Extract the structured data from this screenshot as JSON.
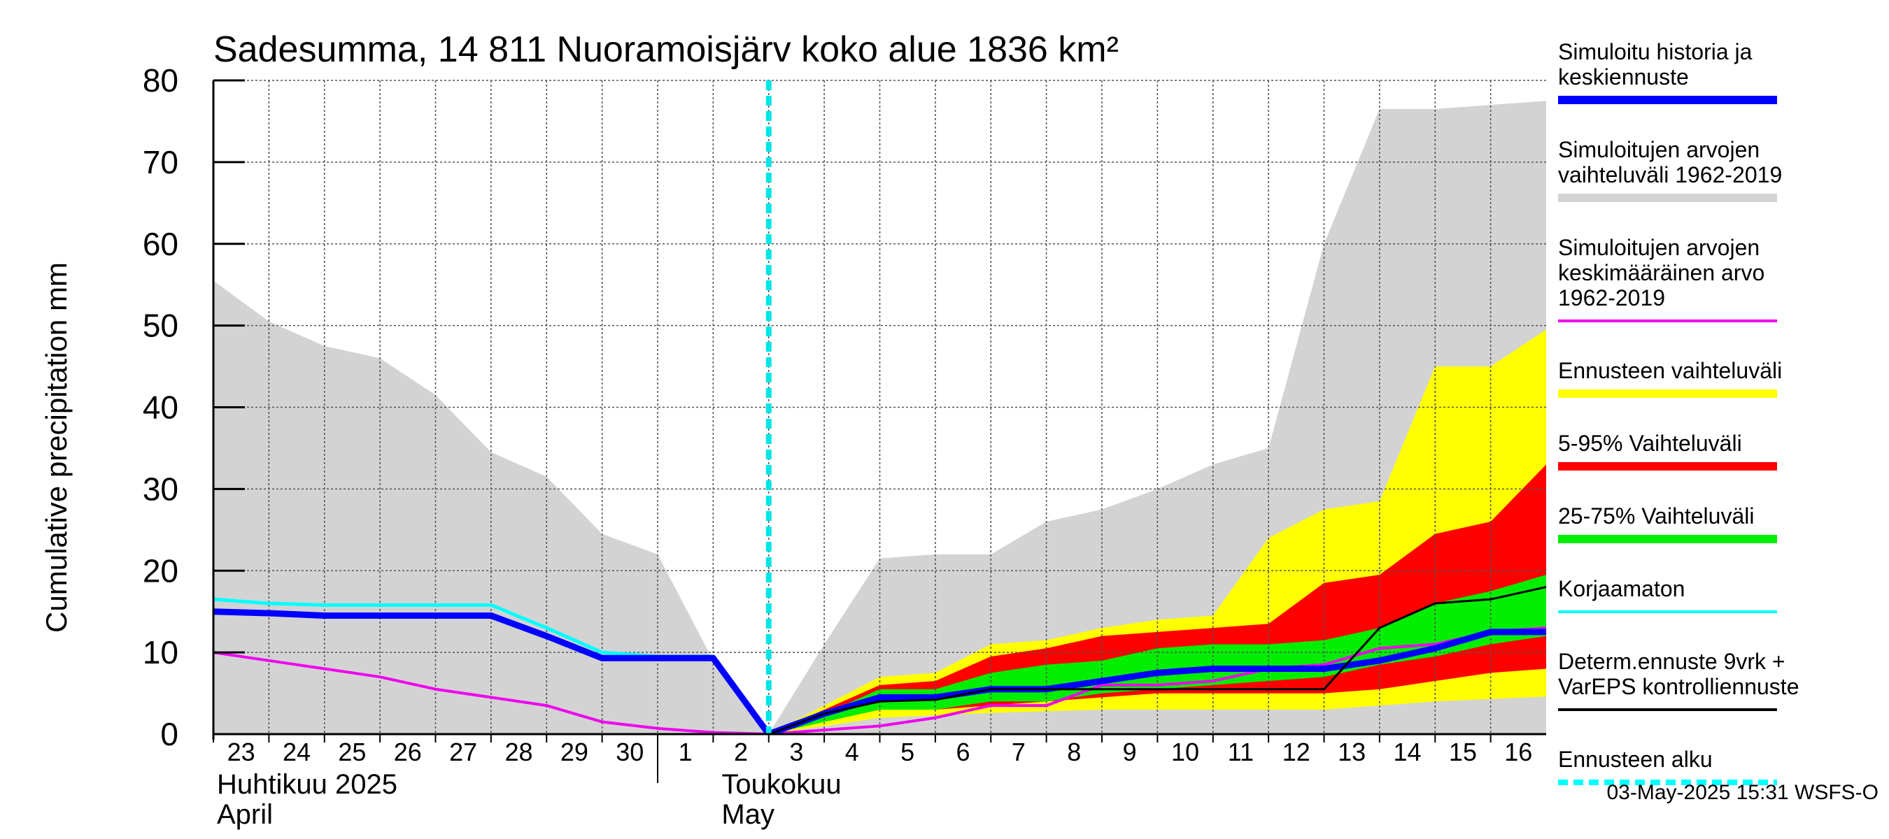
{
  "chart_data": {
    "type": "area",
    "title": "Sadesumma, 14 811 Nuoramoisjärv koko alue 1836 km²",
    "ylabel": "Cumulative precipitation   mm",
    "ylim": [
      0,
      80
    ],
    "yticks": [
      "0",
      "10",
      "20",
      "30",
      "40",
      "50",
      "60",
      "70",
      "80"
    ],
    "xlim": [
      0,
      24
    ],
    "x_tick_labels": [
      "23",
      "24",
      "25",
      "26",
      "27",
      "28",
      "29",
      "30",
      "1",
      "2",
      "3",
      "4",
      "5",
      "6",
      "7",
      "8",
      "9",
      "10",
      "11",
      "12",
      "13",
      "14",
      "15",
      "16"
    ],
    "x_dates": [
      "2025-04-23",
      "2025-04-24",
      "2025-04-25",
      "2025-04-26",
      "2025-04-27",
      "2025-04-28",
      "2025-04-29",
      "2025-04-30",
      "2025-05-01",
      "2025-05-02",
      "2025-05-03",
      "2025-05-04",
      "2025-05-05",
      "2025-05-06",
      "2025-05-07",
      "2025-05-08",
      "2025-05-09",
      "2025-05-10",
      "2025-05-11",
      "2025-05-12",
      "2025-05-13",
      "2025-05-14",
      "2025-05-15",
      "2025-05-16",
      "2025-05-17"
    ],
    "month_labels": [
      {
        "line1": "Huhtikuu  2025",
        "line2": "April"
      },
      {
        "line1": "Toukokuu",
        "line2": "May"
      }
    ],
    "forecast_start_x": 10,
    "bands": [
      {
        "name": "Simuloitujen arvojen vaihteluväli 1962-2019",
        "color": "#d3d3d3",
        "x": [
          0,
          1,
          2,
          3,
          4,
          5,
          6,
          7,
          8,
          9,
          10,
          11,
          12,
          13,
          14,
          15,
          16,
          17,
          18,
          19,
          20,
          21,
          22,
          23,
          24
        ],
        "upper": [
          55.5,
          50.5,
          47.5,
          46,
          41.5,
          34.5,
          31.5,
          24.5,
          22,
          9,
          0,
          11,
          21.5,
          22,
          22,
          26,
          27.5,
          30,
          33,
          35,
          60,
          76.5,
          76.5,
          77,
          77.5
        ],
        "lower": [
          0,
          0,
          0,
          0,
          0,
          0,
          0,
          0,
          0,
          0,
          0,
          0,
          0,
          0,
          0,
          0,
          0,
          0,
          0,
          0,
          0,
          0,
          0,
          0,
          0
        ]
      },
      {
        "name": "Ennusteen vaihteluväli",
        "color": "#ffff00",
        "x": [
          10,
          11,
          12,
          13,
          14,
          15,
          16,
          17,
          18,
          19,
          20,
          21,
          22,
          23,
          24
        ],
        "upper": [
          0,
          3.5,
          7,
          7.5,
          11,
          11.5,
          13,
          14,
          14.5,
          24,
          27.5,
          28.5,
          45,
          45,
          49.5
        ],
        "lower": [
          0,
          1,
          2,
          2.3,
          2.6,
          2.8,
          3,
          3,
          3,
          3,
          3,
          3.5,
          4,
          4.3,
          4.6
        ]
      },
      {
        "name": "5-95% Vaihteluväli",
        "color": "#ff0000",
        "x": [
          10,
          11,
          12,
          13,
          14,
          15,
          16,
          17,
          18,
          19,
          20,
          21,
          22,
          23,
          24
        ],
        "upper": [
          0,
          3,
          6,
          6.5,
          9.5,
          10.5,
          12,
          12.5,
          13,
          13.5,
          18.5,
          19.5,
          24.5,
          26,
          33
        ],
        "lower": [
          0,
          1.5,
          3,
          3,
          3.5,
          4,
          4.5,
          5,
          5,
          5,
          5,
          5.5,
          6.5,
          7.5,
          8
        ]
      },
      {
        "name": "25-75% Vaihteluväli",
        "color": "#00ee00",
        "x": [
          10,
          11,
          12,
          13,
          14,
          15,
          16,
          17,
          18,
          19,
          20,
          21,
          22,
          23,
          24
        ],
        "upper": [
          0,
          2.5,
          5.5,
          5.5,
          7.5,
          8.5,
          9,
          10.5,
          11,
          11,
          11.5,
          13,
          16,
          17.5,
          19.5
        ],
        "lower": [
          0,
          1.5,
          3,
          3,
          4,
          4,
          5,
          5.5,
          6,
          6.5,
          7,
          8.5,
          9.5,
          11,
          12
        ]
      }
    ],
    "series": [
      {
        "name": "Simuloitujen arvojen keskimääräinen arvo 1962-2019",
        "color": "#ee00ee",
        "width": 4,
        "x": [
          0,
          1,
          2,
          3,
          4,
          5,
          6,
          7,
          8,
          9,
          10,
          11,
          12,
          13,
          14,
          15,
          16,
          17,
          18,
          19,
          20,
          21,
          22,
          23,
          24
        ],
        "y": [
          10,
          9,
          8,
          7,
          5.5,
          4.5,
          3.5,
          1.5,
          0.7,
          0.2,
          0,
          0.5,
          1,
          2,
          3.5,
          3.5,
          6,
          6,
          6.5,
          8,
          8.5,
          10.5,
          11,
          12.5,
          13
        ]
      },
      {
        "name": "Korjaamaton",
        "color": "#00ffff",
        "width": 5,
        "x": [
          0,
          1,
          2,
          3,
          4,
          5,
          6,
          7,
          8,
          9,
          10
        ],
        "y": [
          16.5,
          16,
          15.8,
          15.8,
          15.8,
          15.8,
          13,
          10,
          9.5,
          9.5,
          0
        ]
      },
      {
        "name": "Simuloitu historia ja keskiennuste",
        "color": "#0000ff",
        "width": 9,
        "x": [
          0,
          1,
          2,
          3,
          4,
          5,
          6,
          7,
          8,
          9,
          10,
          11,
          12,
          13,
          14,
          15,
          16,
          17,
          18,
          19,
          20,
          21,
          22,
          23,
          24
        ],
        "y": [
          15,
          14.8,
          14.5,
          14.5,
          14.5,
          14.5,
          12,
          9.3,
          9.3,
          9.3,
          0,
          2.5,
          4.5,
          4.5,
          5.5,
          5.5,
          6.5,
          7.5,
          8,
          8,
          8,
          9,
          10.5,
          12.5,
          12.5
        ]
      },
      {
        "name": "Determ.ennuste 9vrk + VarEPS kontrolliennuste",
        "color": "#000000",
        "width": 3,
        "x": [
          10,
          11,
          12,
          13,
          14,
          15,
          16,
          17,
          18,
          19,
          20,
          21,
          22,
          23,
          24
        ],
        "y": [
          0,
          2.5,
          4,
          4.2,
          5.5,
          5.5,
          5.5,
          5.5,
          5.5,
          5.5,
          5.5,
          13,
          16,
          16.5,
          18
        ]
      }
    ],
    "legend": [
      {
        "label": "Simuloitu historia ja\nkeskiennuste",
        "color": "#0000ff",
        "style": "thick"
      },
      {
        "label": "Simuloitujen arvojen\nvaihteluväli 1962-2019",
        "color": "#d3d3d3",
        "style": "thick"
      },
      {
        "label": "Simuloitujen arvojen\nkeskimääräinen arvo\n   1962-2019",
        "color": "#ee00ee",
        "style": "thin"
      },
      {
        "label": "Ennusteen vaihteluväli",
        "color": "#ffff00",
        "style": "thick"
      },
      {
        "label": "5-95% Vaihteluväli",
        "color": "#ff0000",
        "style": "thick"
      },
      {
        "label": "25-75% Vaihteluväli",
        "color": "#00ee00",
        "style": "thick"
      },
      {
        "label": "Korjaamaton",
        "color": "#00ffff",
        "style": "thin"
      },
      {
        "label": "Determ.ennuste 9vrk +\nVarEPS kontrolliennuste",
        "color": "#000000",
        "style": "thin"
      },
      {
        "label": "Ennusteen alku",
        "color": "#00ffff",
        "style": "dashed"
      }
    ],
    "grid": true,
    "legend_position": "right"
  },
  "footer": "03-May-2025 15:31 WSFS-O"
}
